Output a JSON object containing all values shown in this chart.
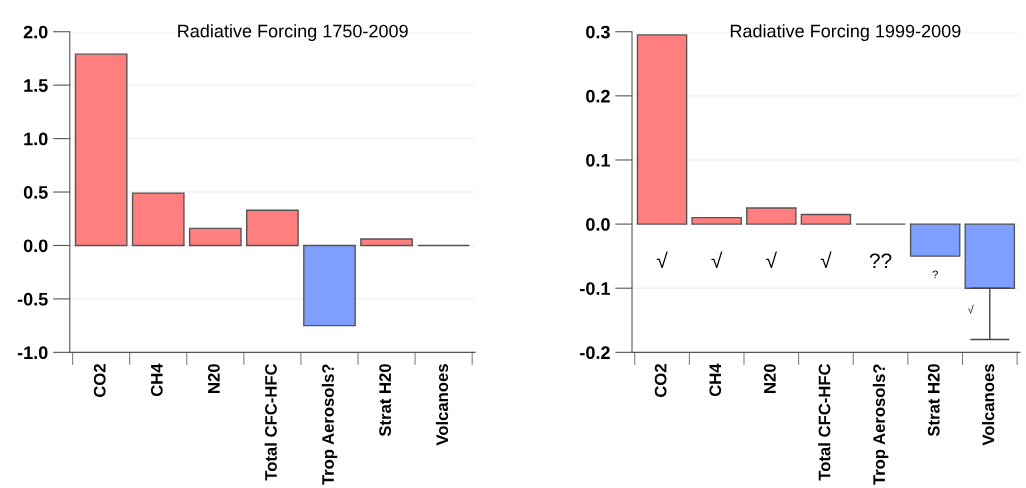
{
  "chart_data": [
    {
      "type": "bar",
      "title": "Radiative Forcing 1750-2009",
      "categories": [
        "CO2",
        "CH4",
        "N20",
        "Total CFC-HFC",
        "Trop Aerosols?",
        "Strat H20",
        "Volcanoes"
      ],
      "values": [
        1.79,
        0.49,
        0.16,
        0.33,
        -0.75,
        0.06,
        0.0
      ],
      "colors": [
        "#ff7f7f",
        "#ff7f7f",
        "#ff7f7f",
        "#ff7f7f",
        "#7f9fff",
        "#ff7f7f",
        "#555555"
      ],
      "ylim": [
        -1.0,
        2.0
      ],
      "yticks": [
        {
          "value": -1.0,
          "label": "-1.0"
        },
        {
          "value": -0.5,
          "label": "-0.5"
        },
        {
          "value": 0.0,
          "label": "0.0"
        },
        {
          "value": 0.5,
          "label": "0.5"
        },
        {
          "value": 1.0,
          "label": "1.0"
        },
        {
          "value": 1.5,
          "label": "1.5"
        },
        {
          "value": 2.0,
          "label": "2.0"
        }
      ],
      "grid": "y"
    },
    {
      "type": "bar",
      "title": "Radiative Forcing 1999-2009",
      "categories": [
        "CO2",
        "CH4",
        "N20",
        "Total CFC-HFC",
        "Trop Aerosols?",
        "Strat H20",
        "Volcanoes"
      ],
      "values": [
        0.295,
        0.01,
        0.025,
        0.015,
        0.0,
        -0.05,
        -0.1
      ],
      "colors": [
        "#ff7f7f",
        "#ff7f7f",
        "#ff7f7f",
        "#ff7f7f",
        "#555555",
        "#7f9fff",
        "#7f9fff"
      ],
      "errors": [
        null,
        null,
        null,
        null,
        null,
        null,
        [
          -0.18,
          -0.1
        ]
      ],
      "ylim": [
        -0.2,
        0.3
      ],
      "yticks": [
        {
          "value": -0.2,
          "label": "-0.2"
        },
        {
          "value": -0.1,
          "label": "-0.1"
        },
        {
          "value": 0.0,
          "label": "0.0"
        },
        {
          "value": 0.1,
          "label": "0.1"
        },
        {
          "value": 0.2,
          "label": "0.2"
        },
        {
          "value": 0.3,
          "label": "0.3"
        }
      ],
      "grid": "y",
      "annotations": [
        "√",
        "√",
        "√",
        "√",
        "??",
        "?",
        "√"
      ]
    }
  ]
}
